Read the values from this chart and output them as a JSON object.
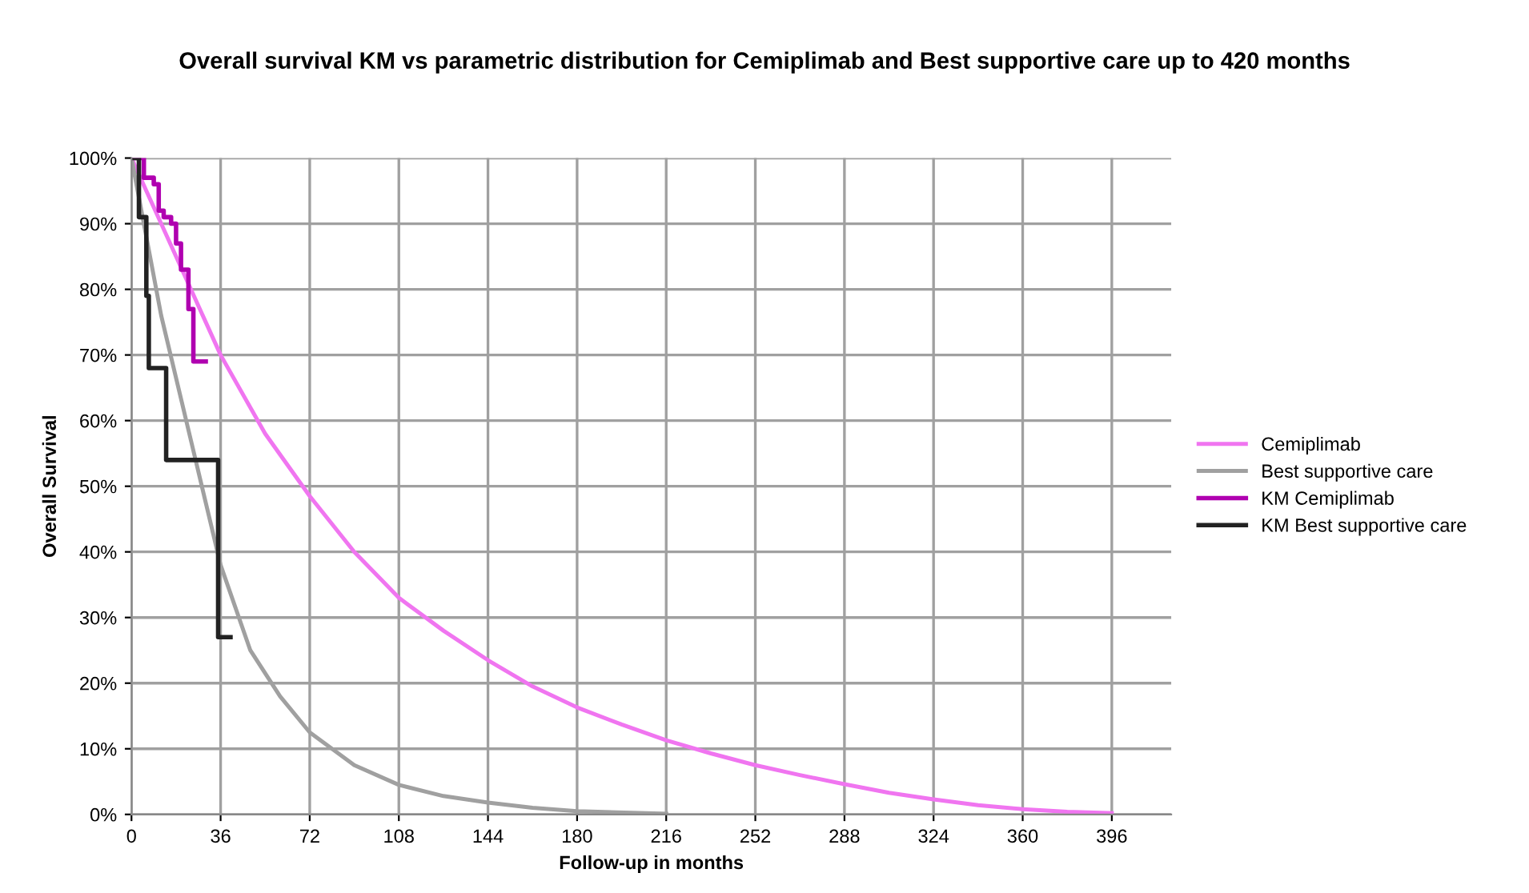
{
  "chart_data": {
    "type": "line",
    "title": "Overall survival KM vs parametric distribution for Cemiplimab and Best supportive care up to 420 months",
    "xlabel": "Follow-up in months",
    "ylabel": "Overall Survival",
    "xlim": [
      0,
      420
    ],
    "xticks": [
      0,
      36,
      72,
      108,
      144,
      180,
      216,
      252,
      288,
      324,
      360,
      396
    ],
    "ylim": [
      0,
      100
    ],
    "yticks": [
      {
        "value": 0,
        "label": "0%"
      },
      {
        "value": 10,
        "label": "10%"
      },
      {
        "value": 20,
        "label": "20%"
      },
      {
        "value": 30,
        "label": "30%"
      },
      {
        "value": 40,
        "label": "40%"
      },
      {
        "value": 50,
        "label": "50%"
      },
      {
        "value": 60,
        "label": "60%"
      },
      {
        "value": 70,
        "label": "70%"
      },
      {
        "value": 80,
        "label": "80%"
      },
      {
        "value": 90,
        "label": "90%"
      },
      {
        "value": 100,
        "label": "100%"
      }
    ],
    "grid": true,
    "legend": "right",
    "marker": "none",
    "line_style": "solid",
    "series": [
      {
        "name": "Cemiplimab",
        "color": "#f075f0",
        "x": [
          0,
          12,
          24,
          36,
          54,
          72,
          90,
          108,
          126,
          144,
          162,
          180,
          198,
          216,
          234,
          252,
          270,
          288,
          306,
          324,
          342,
          360,
          378,
          396
        ],
        "values": [
          100,
          90,
          80,
          70,
          58,
          48.5,
          40,
          33,
          28,
          23.5,
          19.5,
          16.3,
          13.7,
          11.3,
          9.3,
          7.5,
          6,
          4.6,
          3.3,
          2.3,
          1.4,
          0.8,
          0.4,
          0.2
        ]
      },
      {
        "name": "Best supportive care",
        "color": "#a0a0a0",
        "x": [
          0,
          6,
          12,
          24,
          36,
          48,
          60,
          72,
          90,
          108,
          126,
          144,
          162,
          180,
          216
        ],
        "values": [
          100,
          88,
          76,
          57,
          38,
          25,
          18,
          12.5,
          7.5,
          4.5,
          2.8,
          1.8,
          1,
          0.5,
          0.1
        ]
      },
      {
        "name": "KM Cemiplimab",
        "color": "#b000b0",
        "type": "step",
        "x": [
          0,
          5,
          9,
          11,
          13,
          16,
          18,
          20,
          23,
          25,
          30
        ],
        "values": [
          100,
          97,
          96,
          92,
          91,
          90,
          87,
          83,
          77,
          69,
          69
        ]
      },
      {
        "name": "KM Best supportive care",
        "color": "#222222",
        "type": "step",
        "x": [
          0,
          3,
          6,
          7,
          14,
          35,
          40
        ],
        "values": [
          100,
          91,
          79,
          68,
          54,
          27,
          27
        ]
      }
    ]
  }
}
